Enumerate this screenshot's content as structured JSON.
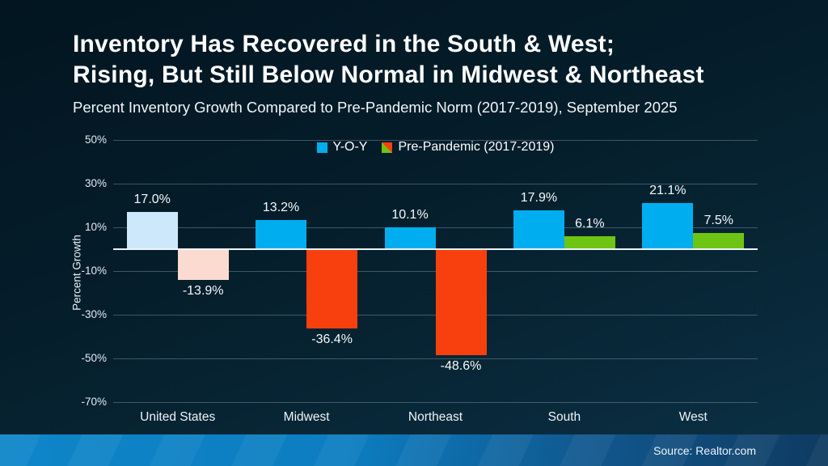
{
  "header": {
    "title_line1": "Inventory Has Recovered in the South & West;",
    "title_line2": "Rising, But Still Below Normal in Midwest & Northeast",
    "subtitle": "Percent Inventory Growth Compared to Pre-Pandemic Norm (2017-2019), September 2025"
  },
  "legend": {
    "items": [
      {
        "label": "Y-O-Y",
        "swatch": "yoy"
      },
      {
        "label": "Pre-Pandemic (2017-2019)",
        "swatch": "pre"
      }
    ]
  },
  "footer": {
    "source": "Source: Realtor.com"
  },
  "colors": {
    "yoy_blue": "#00aeef",
    "yoy_blue_muted": "#cde8fa",
    "pre_red": "#f8400e",
    "pre_red_muted": "#fbdbd0",
    "pre_green": "#6ec413",
    "gridline": "rgba(158,178,192,0.38)",
    "zero_line": "#eef4f8",
    "footer_gradient": [
      "#0e86c9",
      "#0c7dc0",
      "#11568c",
      "#0e3a60"
    ],
    "background_top": "#021520",
    "background_bottom": "#0b3146"
  },
  "chart_data": {
    "type": "bar",
    "title": "Inventory Has Recovered in the South & West; Rising, But Still Below Normal in Midwest & Northeast",
    "subtitle": "Percent Inventory Growth Compared to Pre-Pandemic Norm (2017-2019), September 2025",
    "categories": [
      "United States",
      "Midwest",
      "Northeast",
      "South",
      "West"
    ],
    "series": [
      {
        "name": "Y-O-Y",
        "values": [
          17.0,
          13.2,
          10.1,
          17.9,
          21.1
        ],
        "labels": [
          "17.0%",
          "13.2%",
          "10.1%",
          "17.9%",
          "21.1%"
        ],
        "colors": [
          "#cde8fa",
          "#00aeef",
          "#00aeef",
          "#00aeef",
          "#00aeef"
        ]
      },
      {
        "name": "Pre-Pandemic (2017-2019)",
        "values": [
          -13.9,
          -36.4,
          -48.6,
          6.1,
          7.5
        ],
        "labels": [
          "-13.9%",
          "-36.4%",
          "-48.6%",
          "6.1%",
          "7.5%"
        ],
        "colors": [
          "#fbdbd0",
          "#f8400e",
          "#f8400e",
          "#6ec413",
          "#6ec413"
        ]
      }
    ],
    "xlabel": "",
    "ylabel": "Percent Growth",
    "yticks": [
      {
        "value": 50,
        "label": "50%"
      },
      {
        "value": 30,
        "label": "30%"
      },
      {
        "value": 10,
        "label": "10%"
      },
      {
        "value": -10,
        "label": "-10%"
      },
      {
        "value": -30,
        "label": "-30%"
      },
      {
        "value": -50,
        "label": "-50%"
      },
      {
        "value": -70,
        "label": "-70%"
      }
    ],
    "ylim": [
      -70,
      50
    ],
    "grid": true,
    "zero_line": true,
    "legend_position": "top-center",
    "source": "Source: Realtor.com"
  }
}
